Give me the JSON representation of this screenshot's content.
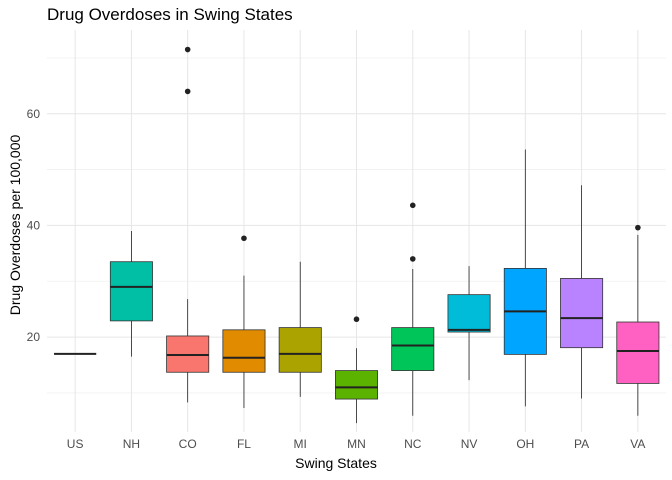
{
  "chart_data": {
    "type": "boxplot",
    "title": "Drug Overdoses in Swing States",
    "xlabel": "Swing States",
    "ylabel": "Drug Overdoses per 100,000",
    "ylim": [
      3,
      75
    ],
    "yticks": [
      20,
      40,
      60
    ],
    "grid": true,
    "legend": "none",
    "categories": [
      "US",
      "NH",
      "CO",
      "FL",
      "MI",
      "MN",
      "NC",
      "NV",
      "OH",
      "PA",
      "VA"
    ],
    "boxes": [
      {
        "category": "US",
        "color": "#000000",
        "min": 17.0,
        "q1": 17.0,
        "median": 17.0,
        "q3": 17.0,
        "max": 17.0,
        "outliers": []
      },
      {
        "category": "NH",
        "color": "#00BFA5",
        "min": 16.5,
        "q1": 22.9,
        "median": 29.0,
        "q3": 33.5,
        "max": 39.0,
        "outliers": []
      },
      {
        "category": "CO",
        "color": "#F8766D",
        "min": 8.3,
        "q1": 13.7,
        "median": 16.8,
        "q3": 20.2,
        "max": 26.8,
        "outliers": [
          64.0,
          71.5
        ]
      },
      {
        "category": "FL",
        "color": "#E08B00",
        "min": 7.3,
        "q1": 13.7,
        "median": 16.3,
        "q3": 21.3,
        "max": 31.0,
        "outliers": [
          37.7
        ]
      },
      {
        "category": "MI",
        "color": "#ABA300",
        "min": 9.3,
        "q1": 13.7,
        "median": 17.0,
        "q3": 21.7,
        "max": 33.5,
        "outliers": []
      },
      {
        "category": "MN",
        "color": "#5BB300",
        "min": 4.6,
        "q1": 8.9,
        "median": 11.0,
        "q3": 14.0,
        "max": 18.0,
        "outliers": [
          23.2
        ]
      },
      {
        "category": "NC",
        "color": "#00C65A",
        "min": 5.9,
        "q1": 14.0,
        "median": 18.5,
        "q3": 21.7,
        "max": 32.2,
        "outliers": [
          34.0,
          43.6
        ]
      },
      {
        "category": "NV",
        "color": "#00BCD8",
        "min": 12.3,
        "q1": 20.9,
        "median": 21.3,
        "q3": 27.6,
        "max": 32.7,
        "outliers": []
      },
      {
        "category": "OH",
        "color": "#00A5FF",
        "min": 7.6,
        "q1": 16.9,
        "median": 24.6,
        "q3": 32.3,
        "max": 53.6,
        "outliers": []
      },
      {
        "category": "PA",
        "color": "#B983FF",
        "min": 9.0,
        "q1": 18.1,
        "median": 23.4,
        "q3": 30.5,
        "max": 47.2,
        "outliers": []
      },
      {
        "category": "VA",
        "color": "#FF61C3",
        "min": 5.9,
        "q1": 11.7,
        "median": 17.5,
        "q3": 22.7,
        "max": 38.3,
        "outliers": [
          39.6
        ]
      }
    ]
  }
}
